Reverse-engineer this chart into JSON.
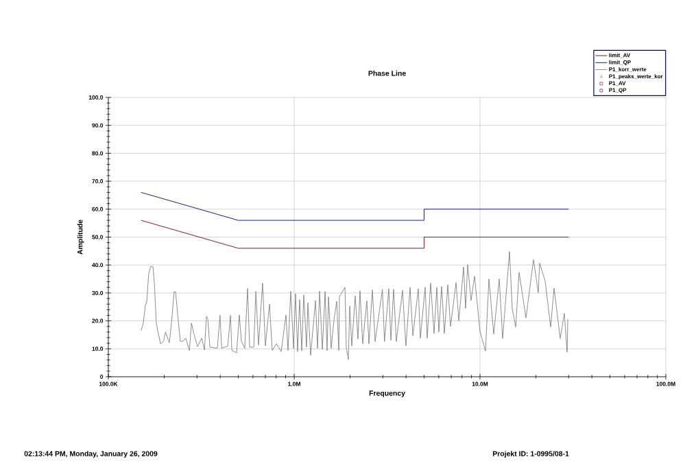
{
  "chart_data": {
    "type": "line",
    "title": "Phase Line",
    "xlabel": "Frequency",
    "ylabel": "Amplitude",
    "annotations": [
      "02:13:44 PM, Monday, January 26, 2009",
      "Projekt ID: 1-0995/08-1"
    ],
    "log": "x",
    "grid": true,
    "legend": "top right",
    "xlim": [
      100000,
      100000000
    ],
    "ylim": [
      0,
      100
    ],
    "xticks": [
      {
        "value": 100000,
        "label": "100.0K"
      },
      {
        "value": 1000000,
        "label": "1.0M"
      },
      {
        "value": 10000000,
        "label": "10.0M"
      },
      {
        "value": 100000000,
        "label": "100.0M"
      }
    ],
    "yticks": [
      0,
      {
        "value": 10,
        "label": "10.0"
      },
      {
        "value": 20,
        "label": "20.0"
      },
      {
        "value": 30,
        "label": "30.0"
      },
      {
        "value": 40,
        "label": "40.0"
      },
      {
        "value": 50,
        "label": "50.0"
      },
      {
        "value": 60,
        "label": "60.0"
      },
      {
        "value": 70,
        "label": "70.0"
      },
      {
        "value": 80,
        "label": "80.0"
      },
      {
        "value": 90,
        "label": "90.0"
      },
      {
        "value": 100,
        "label": "100.0"
      }
    ],
    "series": [
      {
        "name": "limit_AV",
        "color": "#800000",
        "marker": "none",
        "x": [
          150000,
          500000,
          5000000,
          5000000,
          30000000
        ],
        "values": [
          56,
          46,
          46,
          50,
          50
        ]
      },
      {
        "name": "limit_QP",
        "color": "#000080",
        "marker": "none",
        "x": [
          150000,
          500000,
          5000000,
          5000000,
          30000000
        ],
        "values": [
          66,
          56,
          56,
          60,
          60
        ]
      },
      {
        "name": "P1_korr_werte",
        "color": "#808080",
        "marker": "none",
        "x": [
          150000,
          154000,
          158000,
          161000,
          165000,
          169000,
          174000,
          177000,
          181000,
          184000,
          191000,
          198000,
          203000,
          213000,
          219000,
          226000,
          230000,
          236000,
          244000,
          253000,
          261000,
          273000,
          280000,
          289000,
          302000,
          318000,
          329000,
          337000,
          343000,
          352000,
          386000,
          399000,
          407000,
          439000,
          454000,
          462000,
          490000,
          507000,
          520000,
          542000,
          561000,
          576000,
          606000,
          622000,
          643000,
          676000,
          700000,
          736000,
          762000,
          802000,
          851000,
          903000,
          926000,
          958000,
          992000,
          1017000,
          1043000,
          1070000,
          1098000,
          1126000,
          1165000,
          1185000,
          1226000,
          1302000,
          1336000,
          1370000,
          1418000,
          1467000,
          1503000,
          1530000,
          1582000,
          1637000,
          1694000,
          1738000,
          1753000,
          1877000,
          1908000,
          1957000,
          1991000,
          2041000,
          2131000,
          2203000,
          2260000,
          2338000,
          2460000,
          2525000,
          2635000,
          2726000,
          2984000,
          3062000,
          3228000,
          3314000,
          3428000,
          3545000,
          3829000,
          3993000,
          4204000,
          4351000,
          4654000,
          4773000,
          5067000,
          5197000,
          5424000,
          5659000,
          5854000,
          6004000,
          6215000,
          6429000,
          6708000,
          6941000,
          7433000,
          7692000,
          8157000,
          8364000,
          8578000,
          8952000,
          9341000,
          10000000,
          10700000,
          11170000,
          11850000,
          12690000,
          13240000,
          14410000,
          14910000,
          15560000,
          16230000,
          17670000,
          19400000,
          20590000,
          20940000,
          22420000,
          23990000,
          25030000,
          27020000,
          28430000,
          29420000,
          29670000
        ],
        "values": [
          16.5,
          19,
          25.5,
          27,
          37,
          39.5,
          39.3,
          33,
          19.5,
          16.7,
          11.8,
          12.6,
          16,
          12.2,
          19.8,
          30.5,
          30.3,
          22.3,
          12.6,
          12.8,
          13.8,
          9.4,
          19.2,
          15.2,
          10.8,
          13.8,
          9.6,
          21.6,
          20.6,
          10.6,
          10.2,
          22,
          10.2,
          11,
          22,
          9.4,
          8.6,
          22.1,
          12.6,
          10.2,
          31.6,
          10.6,
          10.6,
          30.6,
          11.4,
          33.5,
          11,
          26,
          9.4,
          11.8,
          9,
          22.1,
          9.4,
          30.6,
          10.2,
          29.7,
          9,
          27.6,
          9.3,
          29.3,
          10.6,
          26.5,
          7.7,
          27.3,
          10.2,
          30.6,
          9.8,
          30.5,
          9.4,
          28.6,
          10.2,
          20.2,
          27,
          9.4,
          28.7,
          32,
          10.2,
          6.2,
          25.3,
          11,
          29,
          13.5,
          30.8,
          11.8,
          27.2,
          11.8,
          31.1,
          12.6,
          31.3,
          12.6,
          31.5,
          13,
          31.3,
          12.6,
          30.9,
          11,
          32,
          14.7,
          31.5,
          13.8,
          32,
          13.8,
          33.5,
          15.5,
          32,
          16,
          32.3,
          15.5,
          32.9,
          18,
          33.7,
          20,
          39.3,
          24.5,
          40.1,
          27.3,
          36,
          16.2,
          9.2,
          35,
          15.3,
          35,
          13.7,
          44.8,
          24.3,
          17.8,
          37.4,
          21.1,
          41.9,
          30.1,
          40.7,
          34.2,
          17.8,
          31.7,
          13.7,
          22.7,
          8.8,
          20.6
        ]
      },
      {
        "name": "P1_peaks_werte_kor",
        "type": "scatter",
        "color": "#808080",
        "marker": "triangle"
      },
      {
        "name": "P1_AV",
        "type": "scatter",
        "color": "#800000",
        "marker": "square"
      },
      {
        "name": "P1_QP",
        "type": "scatter",
        "color": "#000080",
        "marker": "square"
      }
    ]
  }
}
